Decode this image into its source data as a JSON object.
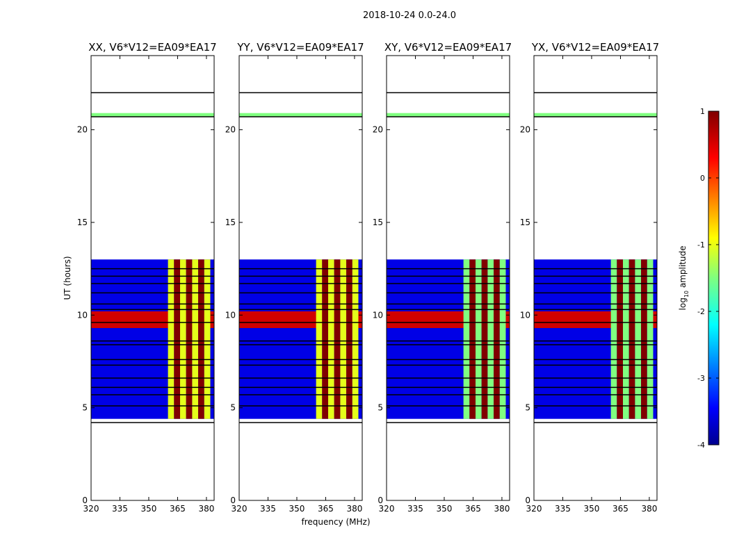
{
  "chart_data": {
    "type": "heatmap",
    "suptitle": "2018-10-24 0.0-24.0",
    "xlabel": "frequency (MHz)",
    "ylabel": "UT (hours)",
    "xlim": [
      320,
      384
    ],
    "ylim": [
      0,
      24
    ],
    "xticks": [
      320,
      335,
      350,
      365,
      380
    ],
    "yticks": [
      0,
      5,
      10,
      15,
      20
    ],
    "colorbar": {
      "label": "log10 amplitude",
      "label_base": "log",
      "label_sub": "10",
      "label_rest": " amplitude",
      "range": [
        -4,
        1
      ],
      "ticks": [
        1,
        0,
        -1,
        -2,
        -3,
        -4
      ],
      "colormap": "jet"
    },
    "panels": [
      {
        "title": "XX, V6*V12=EA09*EA17",
        "data_span_hours": [
          4.4,
          13.0
        ],
        "extra_strip_hours": [
          20.7,
          20.9
        ],
        "bright_band_mhz": [
          360,
          382
        ],
        "bright_band_log10_amp": [
          -1,
          1
        ],
        "rfi_peak_hours": [
          9.3,
          10.2
        ],
        "rfi_peak_log10_amp": 1,
        "background_log10_amp": -3.5
      },
      {
        "title": "YY, V6*V12=EA09*EA17",
        "data_span_hours": [
          4.4,
          13.0
        ],
        "extra_strip_hours": [
          20.7,
          20.9
        ],
        "bright_band_mhz": [
          360,
          382
        ],
        "bright_band_log10_amp": [
          -1,
          1
        ],
        "rfi_peak_hours": [
          9.3,
          10.2
        ],
        "rfi_peak_log10_amp": 1,
        "background_log10_amp": -3.5
      },
      {
        "title": "XY, V6*V12=EA09*EA17",
        "data_span_hours": [
          4.4,
          13.0
        ],
        "extra_strip_hours": [
          20.7,
          20.9
        ],
        "bright_band_mhz": [
          360,
          382
        ],
        "bright_band_log10_amp": [
          -1.5,
          1
        ],
        "rfi_peak_hours": [
          9.3,
          10.2
        ],
        "rfi_peak_log10_amp": 1,
        "background_log10_amp": -3.5
      },
      {
        "title": "YX, V6*V12=EA09*EA17",
        "data_span_hours": [
          4.4,
          13.0
        ],
        "extra_strip_hours": [
          20.7,
          20.9
        ],
        "bright_band_mhz": [
          360,
          382
        ],
        "bright_band_log10_amp": [
          -1.5,
          1
        ],
        "rfi_peak_hours": [
          9.3,
          10.2
        ],
        "rfi_peak_log10_amp": 1,
        "background_log10_amp": -3.5
      }
    ],
    "flagged_rows_hours": [
      4.2,
      5.1,
      5.7,
      6.1,
      6.6,
      7.3,
      7.6,
      8.4,
      8.6,
      9.6,
      10.3,
      10.6,
      11.2,
      11.7,
      12.1,
      12.5,
      20.7,
      22.0
    ]
  }
}
